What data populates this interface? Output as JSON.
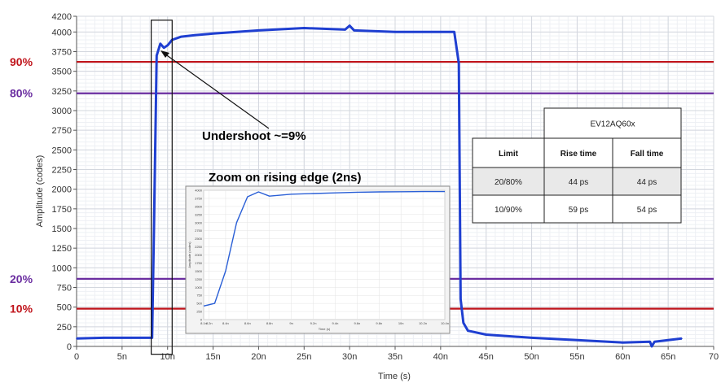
{
  "chart_data": {
    "type": "line",
    "xlabel": "Time (s)",
    "ylabel": "Amplitude (codes)",
    "xlim": [
      0,
      70
    ],
    "ylim": [
      0,
      4200
    ],
    "xticks": [
      0,
      5,
      10,
      15,
      20,
      25,
      30,
      35,
      40,
      45,
      50,
      55,
      60,
      65,
      70
    ],
    "xtick_labels": [
      "0",
      "5n",
      "10n",
      "15n",
      "20n",
      "25n",
      "30n",
      "35n",
      "40n",
      "45n",
      "50n",
      "55n",
      "60n",
      "65n",
      "70"
    ],
    "yticks": [
      0,
      250,
      500,
      750,
      1000,
      1250,
      1500,
      1750,
      2000,
      2250,
      2500,
      2750,
      3000,
      3250,
      3500,
      3750,
      4000,
      4200
    ],
    "grid": true,
    "series": [
      {
        "color": "#1f3fd1",
        "x": [
          0,
          3,
          6,
          8.3,
          8.5,
          8.8,
          9.2,
          9.6,
          10.0,
          10.5,
          11.5,
          13,
          15,
          20,
          25,
          29.5,
          30,
          30.5,
          35,
          40,
          41.5,
          42.0,
          42.2,
          42.5,
          43,
          45,
          50,
          55,
          60,
          63,
          63.2,
          63.5,
          65,
          66.5
        ],
        "y": [
          100,
          110,
          110,
          110,
          1500,
          3700,
          3850,
          3800,
          3830,
          3900,
          3940,
          3960,
          3980,
          4020,
          4050,
          4030,
          4080,
          4020,
          4000,
          4000,
          4000,
          3600,
          600,
          300,
          200,
          150,
          110,
          80,
          50,
          60,
          0,
          60,
          80,
          100
        ]
      }
    ],
    "reference_lines": [
      {
        "label": "90%",
        "y": 3620,
        "color": "#c0141b"
      },
      {
        "label": "80%",
        "y": 3220,
        "color": "#6a2da0"
      },
      {
        "label": "20%",
        "y": 860,
        "color": "#6a2da0"
      },
      {
        "label": "10%",
        "y": 480,
        "color": "#c0141b"
      }
    ],
    "annotations": {
      "undershoot": "Undershoot ~=9%",
      "zoom": "Zoom on rising edge (2ns)"
    },
    "table": {
      "group_header": "EV12AQ60x",
      "columns": [
        "Limit",
        "Rise time",
        "Fall time"
      ],
      "rows": [
        [
          "20/80%",
          "44 ps",
          "44 ps"
        ],
        [
          "10/90%",
          "59 ps",
          "54 ps"
        ]
      ]
    },
    "inset": {
      "xlabel": "Time (s)",
      "ylabel": "Amplitude (codes)",
      "xlim": [
        8.2,
        10.4
      ],
      "ylim": [
        0,
        4000
      ],
      "xtick_labels": [
        "8.1n",
        "8.2n",
        "8.4n",
        "8.6n",
        "8.8n",
        "9n",
        "9.2n",
        "9.4n",
        "9.6n",
        "9.8n",
        "10n",
        "10.2n",
        "10.4n"
      ],
      "ytick_labels": [
        "0",
        "250",
        "500",
        "750",
        "1000",
        "1250",
        "1500",
        "1750",
        "2000",
        "2250",
        "2500",
        "2750",
        "3000",
        "3250",
        "3500",
        "3750",
        "4000"
      ],
      "x": [
        8.1,
        8.2,
        8.3,
        8.4,
        8.5,
        8.6,
        8.7,
        8.8,
        9.0,
        9.2,
        9.4,
        9.6,
        9.8,
        10.0,
        10.2,
        10.4
      ],
      "y": [
        420,
        420,
        500,
        1500,
        3000,
        3800,
        3950,
        3820,
        3880,
        3900,
        3920,
        3940,
        3950,
        3955,
        3960,
        3960
      ]
    }
  }
}
